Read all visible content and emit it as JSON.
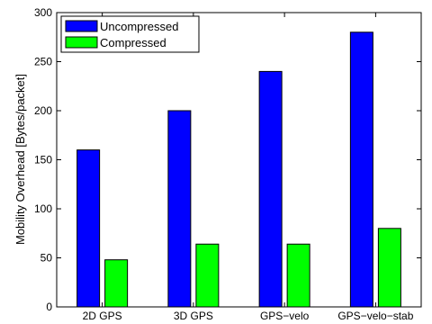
{
  "chart_data": {
    "type": "bar",
    "categories": [
      "2D GPS",
      "3D GPS",
      "GPS−velo",
      "GPS−velo−stab"
    ],
    "series": [
      {
        "name": "Uncompressed",
        "color": "#0000ff",
        "values": [
          160,
          200,
          240,
          280
        ]
      },
      {
        "name": "Compressed",
        "color": "#00ff00",
        "values": [
          48,
          64,
          64,
          80
        ]
      }
    ],
    "xlabel": "",
    "ylabel": "Mobility Overhead [Bytes/packet]",
    "ylim": [
      0,
      300
    ],
    "yticks": [
      0,
      50,
      100,
      150,
      200,
      250,
      300
    ],
    "grid": false,
    "legend_position": "top-left"
  }
}
